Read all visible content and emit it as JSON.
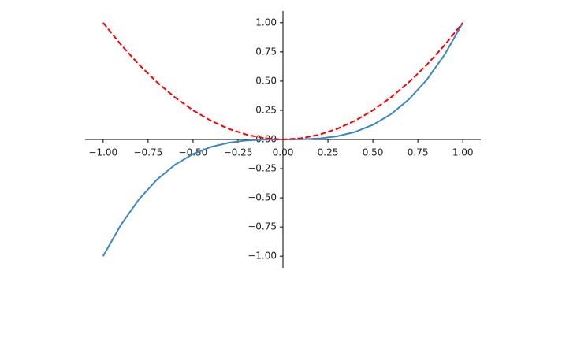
{
  "chart_data": {
    "type": "line",
    "x": [
      -1,
      -0.9,
      -0.8,
      -0.7,
      -0.6,
      -0.5,
      -0.4,
      -0.3,
      -0.2,
      -0.1,
      0,
      0.1,
      0.2,
      0.3,
      0.4,
      0.5,
      0.6,
      0.7,
      0.8,
      0.9,
      1
    ],
    "series": [
      {
        "color": "#3a87c4",
        "dashed": false,
        "values": [
          -1,
          -0.729,
          -0.512,
          -0.343,
          -0.216,
          -0.125,
          -0.064,
          -0.027,
          -0.008,
          -0.001,
          0,
          0.001,
          0.008,
          0.027,
          0.064,
          0.125,
          0.216,
          0.343,
          0.512,
          0.729,
          1
        ]
      },
      {
        "color": "#ff0000",
        "dashed": true,
        "values": [
          1,
          0.81,
          0.64,
          0.49,
          0.36,
          0.25,
          0.16,
          0.09,
          0.04,
          0.01,
          0,
          0.01,
          0.04,
          0.09,
          0.16,
          0.25,
          0.36,
          0.49,
          0.64,
          0.81,
          1
        ]
      }
    ],
    "xlim": [
      -1.1,
      1.1
    ],
    "ylim": [
      -1.1,
      1.1
    ],
    "xticks": [
      {
        "value": -1,
        "label": "−1.00"
      },
      {
        "value": -0.75,
        "label": "−0.75"
      },
      {
        "value": -0.5,
        "label": "−0.50"
      },
      {
        "value": -0.25,
        "label": "−0.25"
      },
      {
        "value": 0,
        "label": "0.00"
      },
      {
        "value": 0.25,
        "label": "0.25"
      },
      {
        "value": 0.5,
        "label": "0.50"
      },
      {
        "value": 0.75,
        "label": "0.75"
      },
      {
        "value": 1,
        "label": "1.00"
      }
    ],
    "yticks": [
      {
        "value": -1,
        "label": "−1.00"
      },
      {
        "value": -0.75,
        "label": "−0.75"
      },
      {
        "value": -0.5,
        "label": "−0.50"
      },
      {
        "value": -0.25,
        "label": "−0.25"
      },
      {
        "value": 0,
        "label": "0.00"
      },
      {
        "value": 0.25,
        "label": "0.25"
      },
      {
        "value": 0.5,
        "label": "0.50"
      },
      {
        "value": 0.75,
        "label": "0.75"
      },
      {
        "value": 1,
        "label": "1.00"
      }
    ],
    "grid": false
  }
}
